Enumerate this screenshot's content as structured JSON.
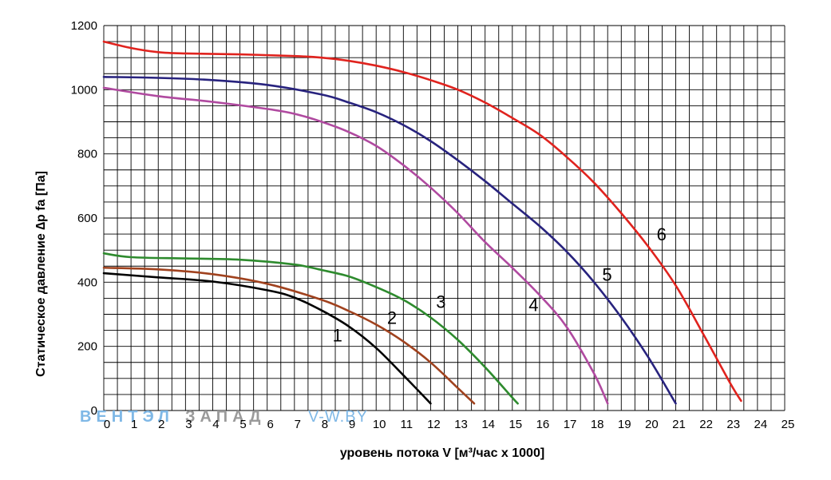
{
  "chart_data": {
    "type": "line",
    "title": "",
    "xlabel": "уровень потока  V [м³/час x 1000]",
    "ylabel": "Статическое давление  ∆p fa [Па]",
    "xlim": [
      0,
      25
    ],
    "ylim": [
      0,
      1200
    ],
    "x_ticks": [
      "0",
      "1",
      "2",
      "3",
      "4",
      "5",
      "6",
      "7",
      "8",
      "9",
      "10",
      "11",
      "12",
      "13",
      "14",
      "15",
      "16",
      "17",
      "18",
      "19",
      "20",
      "21",
      "22",
      "23",
      "24",
      "25"
    ],
    "y_ticks": [
      "0",
      "200",
      "400",
      "600",
      "800",
      "1000",
      "1200"
    ],
    "grid": true,
    "colors": {
      "series_1": "#000000",
      "series_2": "#a0421e",
      "series_3": "#2e8b2e",
      "series_4": "#b04aa0",
      "series_5": "#28237e",
      "series_6": "#e0231e",
      "grid": "#000000"
    },
    "series": [
      {
        "name": "1",
        "points": [
          [
            0,
            428
          ],
          [
            2,
            415
          ],
          [
            4,
            402
          ],
          [
            6,
            375
          ],
          [
            7,
            352
          ],
          [
            8,
            312
          ],
          [
            9,
            262
          ],
          [
            10,
            195
          ],
          [
            11,
            110
          ],
          [
            12,
            22
          ]
        ]
      },
      {
        "name": "2",
        "points": [
          [
            0,
            445
          ],
          [
            2,
            440
          ],
          [
            4,
            425
          ],
          [
            6,
            395
          ],
          [
            8,
            345
          ],
          [
            9,
            310
          ],
          [
            10,
            268
          ],
          [
            11,
            215
          ],
          [
            12,
            150
          ],
          [
            13,
            70
          ],
          [
            13.6,
            22
          ]
        ]
      },
      {
        "name": "3",
        "points": [
          [
            0,
            490
          ],
          [
            1,
            478
          ],
          [
            3,
            474
          ],
          [
            5,
            470
          ],
          [
            7,
            455
          ],
          [
            8,
            438
          ],
          [
            9,
            418
          ],
          [
            10,
            385
          ],
          [
            11,
            345
          ],
          [
            12,
            290
          ],
          [
            13,
            220
          ],
          [
            14,
            135
          ],
          [
            15,
            40
          ],
          [
            15.2,
            22
          ]
        ]
      },
      {
        "name": "4",
        "points": [
          [
            0,
            1006
          ],
          [
            2,
            980
          ],
          [
            4,
            962
          ],
          [
            6,
            940
          ],
          [
            7,
            925
          ],
          [
            8,
            900
          ],
          [
            9,
            868
          ],
          [
            10,
            825
          ],
          [
            11,
            765
          ],
          [
            12,
            695
          ],
          [
            13,
            615
          ],
          [
            14,
            525
          ],
          [
            15,
            445
          ],
          [
            16,
            360
          ],
          [
            17,
            260
          ],
          [
            18,
            115
          ],
          [
            18.5,
            22
          ]
        ]
      },
      {
        "name": "5",
        "points": [
          [
            0,
            1040
          ],
          [
            2,
            1037
          ],
          [
            4,
            1030
          ],
          [
            6,
            1015
          ],
          [
            8,
            985
          ],
          [
            9,
            960
          ],
          [
            10,
            930
          ],
          [
            11,
            890
          ],
          [
            12,
            840
          ],
          [
            13,
            780
          ],
          [
            14,
            715
          ],
          [
            15,
            645
          ],
          [
            16,
            575
          ],
          [
            17,
            495
          ],
          [
            18,
            400
          ],
          [
            19,
            290
          ],
          [
            20,
            165
          ],
          [
            21,
            22
          ]
        ]
      },
      {
        "name": "6",
        "points": [
          [
            0,
            1150
          ],
          [
            1,
            1130
          ],
          [
            2,
            1117
          ],
          [
            3,
            1113
          ],
          [
            5,
            1110
          ],
          [
            7,
            1105
          ],
          [
            8,
            1100
          ],
          [
            9,
            1090
          ],
          [
            10,
            1075
          ],
          [
            11,
            1055
          ],
          [
            12,
            1030
          ],
          [
            13,
            1000
          ],
          [
            14,
            960
          ],
          [
            15,
            912
          ],
          [
            16,
            860
          ],
          [
            17,
            790
          ],
          [
            18,
            710
          ],
          [
            19,
            615
          ],
          [
            20,
            510
          ],
          [
            21,
            390
          ],
          [
            22,
            240
          ],
          [
            23,
            85
          ],
          [
            23.4,
            30
          ]
        ]
      }
    ],
    "curve_labels": [
      {
        "text": "1",
        "x": 8.4,
        "y": 215
      },
      {
        "text": "2",
        "x": 10.4,
        "y": 270
      },
      {
        "text": "3",
        "x": 12.2,
        "y": 320
      },
      {
        "text": "4",
        "x": 15.6,
        "y": 310
      },
      {
        "text": "5",
        "x": 18.3,
        "y": 405
      },
      {
        "text": "6",
        "x": 20.3,
        "y": 530
      }
    ]
  },
  "watermark": {
    "part1": "ВЕНТЭЛ",
    "part2": "ЗАПАД",
    "part3": "V-W.BY",
    "color1": "#7fb8e6",
    "color2": "#9a9a9a"
  }
}
